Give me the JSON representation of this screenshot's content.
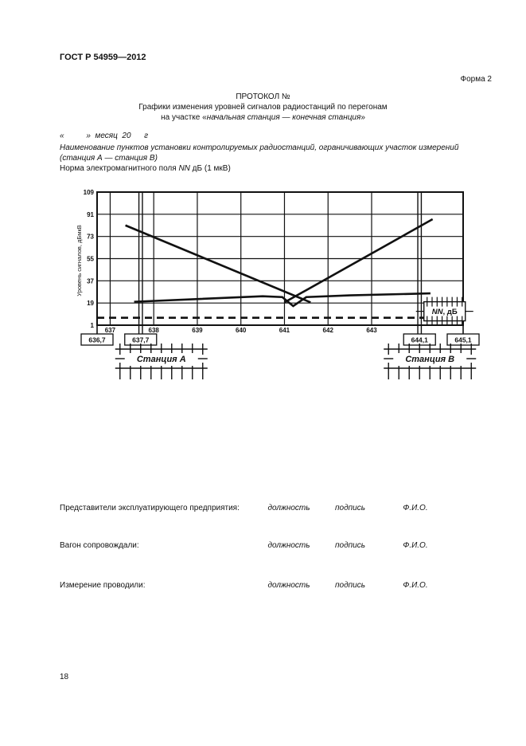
{
  "page": {
    "standard": "ГОСТ Р 54959—2012",
    "form_label": "Форма 2",
    "page_number": "18"
  },
  "protocol": {
    "title": "ПРОТОКОЛ №",
    "subtitle1": "Графики изменения уровней сигналов радиостанций по перегонам",
    "subtitle2_prefix": "на участке «",
    "subtitle2_italic": "начальная станция — конечная станция",
    "subtitle2_suffix": "»",
    "date_line": "«          »  месяц  20      г",
    "desc_line1": "Наименование пунктов установки контролируемых радиостанций, ограничивающих участок измерений",
    "desc_line2": "(станция А — станция В)",
    "norm_prefix": "Норма электромагнитного поля ",
    "norm_nn": "NN",
    "norm_suffix": " дБ (1 мкВ)"
  },
  "chart_data": {
    "type": "line",
    "title": "",
    "xlabel": "",
    "ylabel": "Уровень сигналов, дБмкВ",
    "xlim": [
      636.7,
      645.1
    ],
    "ylim": [
      1,
      109
    ],
    "x_ticks": [
      637,
      638,
      639,
      640,
      641,
      642,
      643
    ],
    "y_ticks": [
      1,
      19,
      37,
      55,
      73,
      91,
      109
    ],
    "grid": true,
    "legend": "none",
    "boxed_x_labels": [
      {
        "km": 636.7,
        "label": "636,7"
      },
      {
        "km": 637.7,
        "label": "637,7"
      },
      {
        "km": 644.1,
        "label": "644,1"
      },
      {
        "km": 645.1,
        "label": "645,1"
      }
    ],
    "series": [
      {
        "name": "station-A-signal",
        "points": [
          [
            637.35,
            82
          ],
          [
            641.6,
            19.5
          ]
        ]
      },
      {
        "name": "station-B-signal",
        "points": [
          [
            641.0,
            19.5
          ],
          [
            644.4,
            87
          ]
        ]
      },
      {
        "name": "measured-track-level",
        "points": [
          [
            637.55,
            20
          ],
          [
            640.5,
            24.5
          ],
          [
            640.95,
            23.8
          ],
          [
            641.2,
            16.5
          ],
          [
            641.5,
            23.8
          ],
          [
            642.5,
            25.2
          ],
          [
            644.35,
            26.8
          ]
        ]
      }
    ],
    "crossing_point": [
      641.26,
      24.5
    ],
    "norm_line": {
      "value": 7,
      "style": "dashed",
      "label_italic": "NN",
      "label_rest": ", дБ",
      "box_km": [
        644.2,
        645.15
      ],
      "box_values": [
        4.5,
        20
      ]
    },
    "stations": [
      {
        "km": 637.7,
        "label": "Станция А"
      },
      {
        "km": 644.1,
        "label": "Станция В"
      }
    ]
  },
  "signatures": {
    "rows": [
      {
        "label": "Представители эксплуатирующего предприятия:",
        "position": "должность",
        "signature": "подпись",
        "name": "Ф.И.О."
      },
      {
        "label": "Вагон сопровождали:",
        "position": "должность",
        "signature": "подпись",
        "name": "Ф.И.О."
      },
      {
        "label": "Измерение проводили:",
        "position": "должность",
        "signature": "подпись",
        "name": "Ф.И.О."
      }
    ]
  }
}
